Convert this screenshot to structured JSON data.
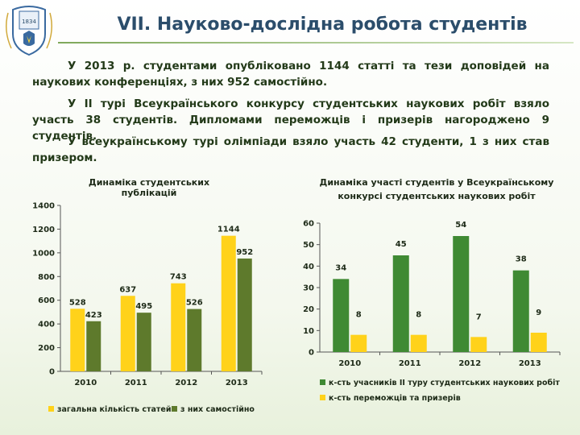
{
  "slide": {
    "title": "VII. Науково-дослідна робота студентів",
    "logo_year": "1834",
    "paragraphs": [
      "У 2013 р. студентами опубліковано 1144 статті та тези доповідей на наукових конференціях, з них 952 самостійно.",
      "У ІІ турі Всеукраїнського конкурсу студентських наукових робіт взяло участь 38 студентів. Дипломами переможців і призерів нагороджено 9 студентів.",
      "У всеукраїнському турі олімпіади взяло участь 42 студенти, 1 з них став призером."
    ]
  },
  "colors": {
    "yellow": "#ffd21a",
    "dark_green": "#5e7a2c",
    "green": "#3f8a33",
    "title": "#2b4d6b"
  },
  "chart_data": [
    {
      "type": "bar",
      "title": "Динаміка студентських публікацій",
      "categories": [
        "2010",
        "2011",
        "2012",
        "2013"
      ],
      "series": [
        {
          "name": "загальна кількість статей",
          "values": [
            528,
            637,
            743,
            1144
          ]
        },
        {
          "name": "з них самостійно",
          "values": [
            423,
            495,
            526,
            952
          ]
        }
      ],
      "ylim": [
        0,
        1400
      ],
      "yticks": [
        "0",
        "200",
        "400",
        "600",
        "800",
        "1000",
        "1200",
        "1400"
      ],
      "legend": "bottom",
      "grid": false
    },
    {
      "type": "bar",
      "title": "Динаміка участі студентів у Всеукраїнському конкурсі студентських наукових робіт",
      "categories": [
        "2010",
        "2011",
        "2012",
        "2013"
      ],
      "series": [
        {
          "name": "к-сть учасників ІІ туру студентських наукових робіт",
          "values": [
            34,
            45,
            54,
            38
          ]
        },
        {
          "name": "к-сть переможців та призерів",
          "values": [
            8,
            8,
            7,
            9
          ]
        }
      ],
      "ylim": [
        0,
        60
      ],
      "yticks": [
        "0",
        "10",
        "20",
        "30",
        "40",
        "50",
        "60"
      ],
      "legend": "bottom",
      "grid": false
    }
  ]
}
